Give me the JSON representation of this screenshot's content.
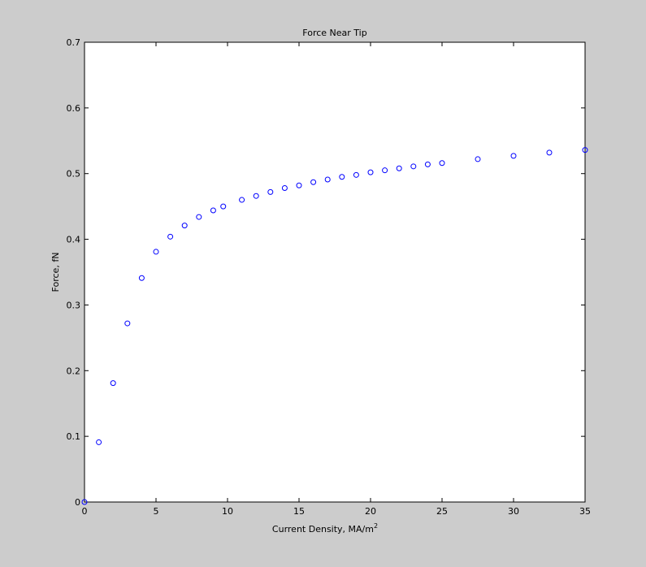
{
  "chart_data": {
    "type": "scatter",
    "title": "Force Near Tip",
    "xlabel": "Current Density, MA/m",
    "xlabel_superscript": "2",
    "ylabel": "Force, fN",
    "xlim": [
      0,
      35
    ],
    "ylim": [
      0,
      0.7
    ],
    "xticks": [
      0,
      5,
      10,
      15,
      20,
      25,
      30,
      35
    ],
    "yticks": [
      0,
      0.1,
      0.2,
      0.3,
      0.4,
      0.5,
      0.6,
      0.7
    ],
    "xtick_labels": [
      "0",
      "5",
      "10",
      "15",
      "20",
      "25",
      "30",
      "35"
    ],
    "ytick_labels": [
      "0",
      "0.1",
      "0.2",
      "0.3",
      "0.4",
      "0.5",
      "0.6",
      "0.7"
    ],
    "grid": false,
    "marker": "open-circle",
    "marker_color": "#0000ff",
    "axes_background": "#ffffff",
    "figure_background": "#cccccc",
    "x": [
      0,
      1,
      2,
      3,
      4,
      5,
      6,
      7,
      8,
      9,
      9.7,
      11,
      12,
      13,
      14,
      15,
      16,
      17,
      18,
      19,
      20,
      21,
      22,
      23,
      24,
      25,
      27.5,
      30,
      32.5,
      35
    ],
    "y": [
      0,
      0.091,
      0.181,
      0.272,
      0.341,
      0.381,
      0.404,
      0.421,
      0.434,
      0.444,
      0.45,
      0.46,
      0.466,
      0.472,
      0.478,
      0.482,
      0.487,
      0.491,
      0.495,
      0.498,
      0.502,
      0.505,
      0.508,
      0.511,
      0.514,
      0.516,
      0.522,
      0.527,
      0.532,
      0.536
    ]
  }
}
